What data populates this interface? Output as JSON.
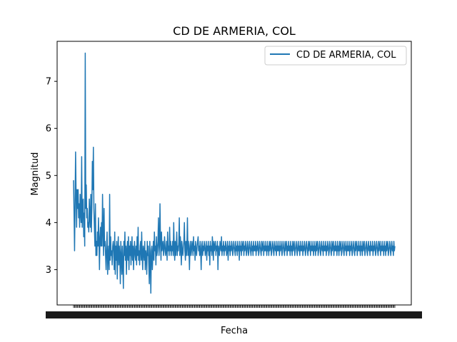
{
  "chart_data": {
    "type": "line",
    "title": "CD DE ARMERIA, COL",
    "xlabel": "Fecha",
    "ylabel": "Magnitud",
    "ylim": [
      2.25,
      7.85
    ],
    "yticks": [
      3,
      4,
      5,
      6,
      7
    ],
    "legend_position": "top-right",
    "grid": false,
    "series": [
      {
        "name": "CD DE ARMERIA, COL",
        "color": "#1f77b4",
        "values": [
          4.9,
          4.2,
          3.4,
          4.4,
          5.5,
          4.6,
          3.9,
          4.7,
          4.3,
          4.7,
          4.1,
          4.4,
          3.9,
          4.6,
          4.2,
          4.0,
          5.4,
          3.9,
          4.4,
          4.5,
          3.7,
          4.2,
          3.5,
          7.6,
          4.3,
          4.8,
          4.1,
          4.3,
          3.9,
          4.0,
          3.8,
          4.5,
          4.1,
          3.9,
          4.6,
          3.8,
          4.3,
          5.3,
          4.7,
          5.6,
          4.3,
          3.9,
          3.5,
          4.4,
          3.3,
          3.6,
          3.3,
          3.8,
          3.5,
          4.1,
          3.6,
          3.0,
          3.7,
          3.9,
          3.5,
          4.0,
          3.5,
          4.6,
          3.9,
          3.3,
          4.3,
          3.5,
          3.6,
          3.3,
          3.0,
          3.5,
          3.8,
          2.9,
          3.3,
          3.5,
          3.0,
          4.6,
          3.2,
          3.7,
          3.3,
          3.4,
          3.1,
          3.5,
          3.6,
          3.4,
          3.0,
          3.8,
          2.9,
          3.5,
          3.2,
          3.6,
          2.8,
          3.4,
          3.7,
          3.1,
          3.5,
          3.3,
          2.7,
          3.6,
          3.2,
          2.9,
          3.5,
          3.1,
          2.6,
          3.6,
          3.3,
          3.8,
          3.2,
          3.5,
          2.9,
          3.4,
          3.6,
          3.2,
          3.7,
          3.0,
          3.5,
          3.3,
          3.6,
          3.1,
          3.4,
          3.7,
          3.2,
          3.5,
          3.0,
          3.4,
          3.6,
          3.3,
          3.2,
          3.5,
          3.1,
          3.7,
          3.3,
          3.9,
          3.2,
          3.4,
          3.1,
          3.5,
          3.6,
          3.2,
          3.8,
          3.3,
          3.0,
          3.5,
          3.4,
          3.2,
          3.6,
          3.0,
          3.4,
          3.3,
          2.9,
          3.6,
          3.3,
          3.5,
          3.1,
          2.7,
          3.6,
          3.2,
          2.5,
          3.4,
          3.5,
          3.0,
          3.3,
          3.6,
          3.2,
          3.8,
          3.4,
          3.5,
          3.1,
          3.7,
          3.3,
          3.4,
          3.6,
          4.1,
          3.3,
          3.5,
          4.4,
          3.6,
          3.2,
          3.8,
          3.4,
          3.5,
          3.6,
          3.3,
          3.4,
          3.7,
          3.5,
          3.3,
          3.4,
          3.6,
          3.2,
          3.8,
          3.4,
          3.5,
          3.3,
          3.9,
          3.4,
          3.6,
          3.3,
          3.5,
          3.4,
          3.6,
          3.3,
          4.0,
          3.5,
          3.2,
          3.6,
          3.3,
          3.5,
          3.8,
          3.3,
          3.5,
          3.4,
          3.6,
          4.1,
          3.3,
          3.7,
          3.5,
          3.1,
          3.6,
          3.4,
          3.3,
          3.5,
          3.6,
          4.0,
          3.4,
          3.2,
          3.6,
          3.3,
          3.5,
          4.1,
          3.3,
          3.6,
          3.4,
          3.0,
          3.5,
          3.6,
          3.3,
          3.4,
          3.6,
          3.5,
          3.3,
          3.7,
          3.4,
          3.5,
          3.2,
          3.6,
          3.4,
          3.3,
          3.5,
          3.6,
          3.7,
          3.4,
          3.5,
          3.3,
          3.6,
          3.4,
          3.0,
          3.5,
          3.6,
          3.3,
          3.5,
          3.4,
          3.6,
          3.5,
          3.3,
          3.4,
          3.6,
          3.2,
          3.5,
          3.4,
          3.6,
          3.3,
          3.5,
          3.1,
          3.6,
          3.4,
          3.5,
          3.3,
          3.7,
          3.5,
          3.2,
          3.6,
          3.4,
          3.5,
          3.6,
          3.3,
          3.5,
          3.4,
          3.6,
          3.0,
          3.5,
          3.4,
          3.3,
          3.6,
          3.5,
          3.4,
          3.7,
          3.3,
          3.5,
          3.4,
          3.6,
          3.3,
          3.5,
          3.4,
          3.6,
          3.5,
          3.3,
          3.4,
          3.6,
          3.2,
          3.5,
          3.4,
          3.6,
          3.3,
          3.5,
          3.4,
          3.6,
          3.5,
          3.3,
          3.4,
          3.6,
          3.5,
          3.4,
          3.3,
          3.6,
          3.4,
          3.5,
          3.3,
          3.6,
          3.4,
          3.5,
          3.2,
          3.6,
          3.4,
          3.5,
          3.3,
          3.6,
          3.4,
          3.5,
          3.6,
          3.3,
          3.5,
          3.4,
          3.6,
          3.5,
          3.3,
          3.4,
          3.6,
          3.5,
          3.3,
          3.4,
          3.6,
          3.5,
          3.4,
          3.3,
          3.6,
          3.4,
          3.5,
          3.3,
          3.6,
          3.4,
          3.5,
          3.4,
          3.6,
          3.3,
          3.5,
          3.4,
          3.6,
          3.5,
          3.3,
          3.4,
          3.6,
          3.5,
          3.4,
          3.3,
          3.6,
          3.4,
          3.5,
          3.6,
          3.3,
          3.5,
          3.4,
          3.6,
          3.4,
          3.5,
          3.3,
          3.6,
          3.4,
          3.5,
          3.3,
          3.6,
          3.4,
          3.5,
          3.6,
          3.3,
          3.4,
          3.5,
          3.6,
          3.4,
          3.3,
          3.5,
          3.6,
          3.4,
          3.5,
          3.3,
          3.6,
          3.4,
          3.5,
          3.4,
          3.6,
          3.3,
          3.5,
          3.4,
          3.6,
          3.5,
          3.3,
          3.4,
          3.6,
          3.5,
          3.4,
          3.3,
          3.6,
          3.4,
          3.5,
          3.6,
          3.3,
          3.5,
          3.4,
          3.6,
          3.4,
          3.5,
          3.3,
          3.6,
          3.4,
          3.5,
          3.3,
          3.6,
          3.4,
          3.5,
          3.6,
          3.3,
          3.4,
          3.5,
          3.6,
          3.4,
          3.3,
          3.5,
          3.6,
          3.4,
          3.5,
          3.3,
          3.6,
          3.4,
          3.5,
          3.4,
          3.6,
          3.3,
          3.5,
          3.4,
          3.6,
          3.5,
          3.3,
          3.4,
          3.6,
          3.5,
          3.4,
          3.3,
          3.6,
          3.4,
          3.5,
          3.6,
          3.3,
          3.5,
          3.4,
          3.6,
          3.4,
          3.5,
          3.3,
          3.6,
          3.4,
          3.5,
          3.3,
          3.6,
          3.4,
          3.5,
          3.6,
          3.3,
          3.4,
          3.5,
          3.6,
          3.4,
          3.3,
          3.5,
          3.6,
          3.4,
          3.5,
          3.3,
          3.6,
          3.4,
          3.5,
          3.4,
          3.6,
          3.3,
          3.5,
          3.4,
          3.6,
          3.5,
          3.3,
          3.4,
          3.6,
          3.5,
          3.4,
          3.3,
          3.6,
          3.4,
          3.5,
          3.6,
          3.3,
          3.5,
          3.4,
          3.6,
          3.4,
          3.5,
          3.3,
          3.6,
          3.4,
          3.5,
          3.3,
          3.6,
          3.4,
          3.5,
          3.6,
          3.3,
          3.4,
          3.5,
          3.6,
          3.4,
          3.3,
          3.5,
          3.6,
          3.4,
          3.5,
          3.3,
          3.6,
          3.4,
          3.5,
          3.4,
          3.6,
          3.3,
          3.5,
          3.4,
          3.6,
          3.5,
          3.3,
          3.4,
          3.6,
          3.5,
          3.4,
          3.3,
          3.6,
          3.4,
          3.5,
          3.6,
          3.3,
          3.5,
          3.4,
          3.6,
          3.4,
          3.5,
          3.3,
          3.6,
          3.4,
          3.5,
          3.3,
          3.6,
          3.4,
          3.5,
          3.6,
          3.3,
          3.4,
          3.5,
          3.6,
          3.4,
          3.3,
          3.5,
          3.6,
          3.4,
          3.5,
          3.3,
          3.6,
          3.4,
          3.5,
          3.4,
          3.6,
          3.3,
          3.5,
          3.4,
          3.6,
          3.5,
          3.3,
          3.4,
          3.6,
          3.5,
          3.4,
          3.3,
          3.6,
          3.4,
          3.5,
          3.6,
          3.3,
          3.5,
          3.4,
          3.6,
          3.4,
          3.5,
          3.3,
          3.6,
          3.4,
          3.5,
          3.3,
          3.6,
          3.4,
          3.5,
          3.6,
          3.3,
          3.4,
          3.5,
          3.6,
          3.4,
          3.3,
          3.5,
          3.6,
          3.4,
          3.5,
          3.3,
          3.6,
          3.4,
          3.5
        ]
      }
    ]
  }
}
